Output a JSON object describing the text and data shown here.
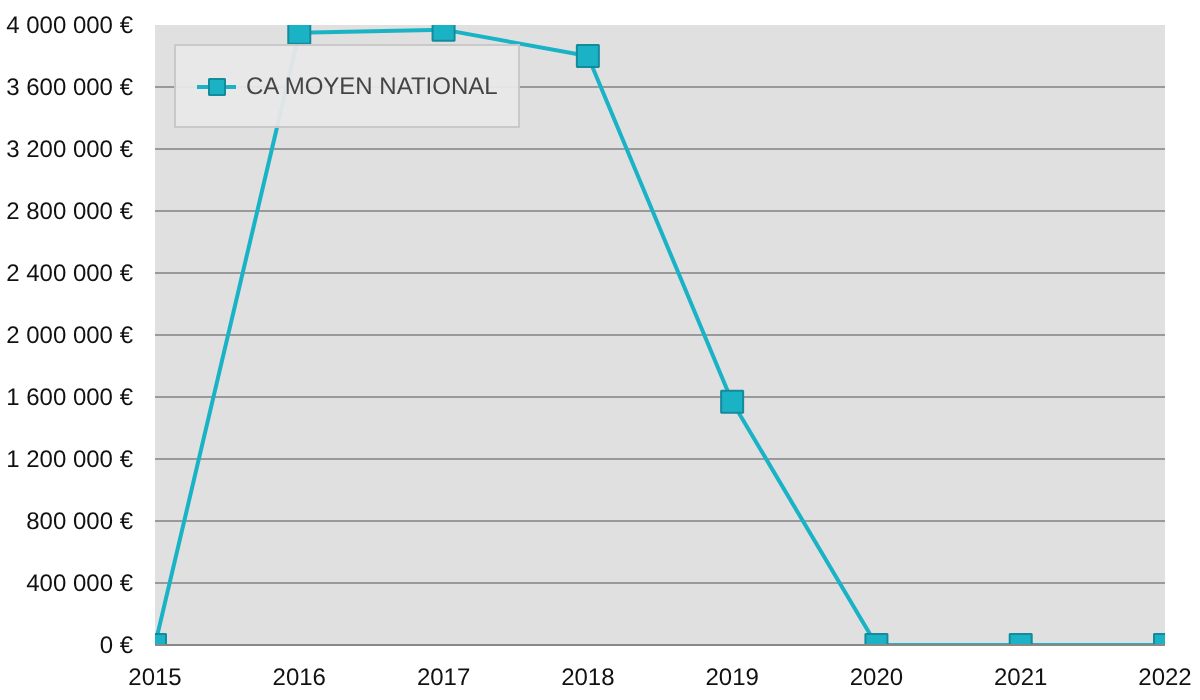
{
  "chart_data": {
    "type": "line",
    "x": [
      2015,
      2016,
      2017,
      2018,
      2019,
      2020,
      2021,
      2022
    ],
    "series": [
      {
        "name": "CA MOYEN NATIONAL",
        "color": "#1ab3c6",
        "values": [
          0,
          3950000,
          3970000,
          3800000,
          1570000,
          0,
          0,
          0
        ]
      }
    ],
    "xlim": [
      2015,
      2022
    ],
    "xticks": [
      2015,
      2016,
      2017,
      2018,
      2019,
      2020,
      2021,
      2022
    ],
    "ylim": [
      0,
      4000000
    ],
    "yticks": [
      {
        "value": 0,
        "label": "0 €"
      },
      {
        "value": 400000,
        "label": "400 000 €"
      },
      {
        "value": 800000,
        "label": "800 000 €"
      },
      {
        "value": 1200000,
        "label": "1 200 000 €"
      },
      {
        "value": 1600000,
        "label": "1 600 000 €"
      },
      {
        "value": 2000000,
        "label": "2 000 000 €"
      },
      {
        "value": 2400000,
        "label": "2 400 000 €"
      },
      {
        "value": 2800000,
        "label": "2 800 000 €"
      },
      {
        "value": 3200000,
        "label": "3 200 000 €"
      },
      {
        "value": 3600000,
        "label": "3 600 000 €"
      },
      {
        "value": 4000000,
        "label": "4 000 000 €"
      }
    ],
    "grid": "y",
    "legend": "top left",
    "marker": "square",
    "line_style": "solid"
  }
}
